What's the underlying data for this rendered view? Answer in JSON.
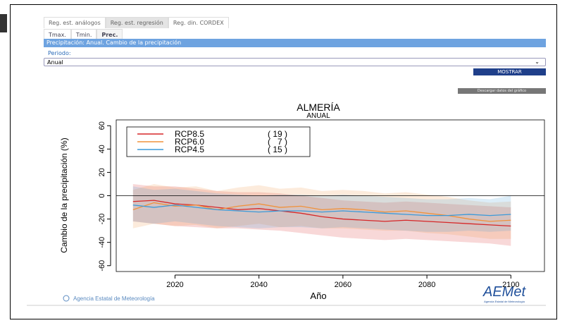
{
  "tabs": [
    "Reg. est. análogos",
    "Reg. est. regresión",
    "Reg. din. CORDEX"
  ],
  "subtabs": [
    "Tmax.",
    "Tmin.",
    "Prec."
  ],
  "header_bar": "Precipitación: Anual. Cambio de la precipitación",
  "period_label": "Periodo:",
  "period_select": "Anual",
  "show_button": "MOSTRAR",
  "download_button": "Descargar datos del gráfico",
  "footer": {
    "agency": "Agencia Estatal de Meteorología",
    "logo": "AEMet",
    "logo_caption": "Agencia Estatal de Meteorología"
  },
  "chart_data": {
    "type": "line",
    "title": "ALMERÍA",
    "subtitle": "ANUAL",
    "xlabel": "Año",
    "ylabel": "Cambio de la precipitación (%)",
    "x": [
      2010,
      2015,
      2020,
      2025,
      2030,
      2035,
      2040,
      2045,
      2050,
      2055,
      2060,
      2065,
      2070,
      2075,
      2080,
      2085,
      2090,
      2095,
      2100
    ],
    "xlim": [
      2006,
      2108
    ],
    "xticks": [
      2020,
      2040,
      2060,
      2080,
      2100
    ],
    "ylim": [
      -65,
      65
    ],
    "yticks": [
      -60,
      -40,
      -20,
      0,
      20,
      40,
      60
    ],
    "legend": "top-left",
    "series": [
      {
        "name": "RCP8.5",
        "legend_count": "( 19 )",
        "color": "#d62728",
        "values": [
          -5,
          -4,
          -7,
          -8,
          -10,
          -12,
          -11,
          -13,
          -15,
          -18,
          -20,
          -21,
          -22,
          -21,
          -22,
          -23,
          -24,
          -25,
          -26
        ],
        "lower": [
          -22,
          -24,
          -26,
          -27,
          -28,
          -28,
          -29,
          -30,
          -32,
          -34,
          -36,
          -37,
          -38,
          -37,
          -38,
          -39,
          -40,
          -41,
          -43
        ],
        "upper": [
          10,
          8,
          8,
          6,
          4,
          3,
          3,
          2,
          0,
          -2,
          -4,
          -5,
          -6,
          -5,
          -6,
          -7,
          -8,
          -9,
          -10
        ]
      },
      {
        "name": "RCP6.0",
        "legend_count": "(   7 )",
        "color": "#f0923c",
        "values": [
          -12,
          -6,
          -9,
          -8,
          -12,
          -9,
          -7,
          -10,
          -9,
          -12,
          -11,
          -12,
          -14,
          -13,
          -15,
          -17,
          -20,
          -22,
          -21
        ],
        "lower": [
          -28,
          -24,
          -26,
          -25,
          -28,
          -26,
          -24,
          -27,
          -26,
          -28,
          -28,
          -29,
          -30,
          -30,
          -32,
          -33,
          -35,
          -37,
          -37
        ],
        "upper": [
          5,
          10,
          7,
          8,
          4,
          7,
          9,
          6,
          7,
          4,
          5,
          4,
          2,
          3,
          1,
          -1,
          -4,
          -6,
          -5
        ]
      },
      {
        "name": "RCP4.5",
        "legend_count": "( 15 )",
        "color": "#3b9ad9",
        "values": [
          -8,
          -10,
          -8,
          -10,
          -12,
          -13,
          -14,
          -13,
          -13,
          -14,
          -13,
          -14,
          -15,
          -16,
          -17,
          -17,
          -16,
          -17,
          -16
        ],
        "lower": [
          -22,
          -24,
          -22,
          -24,
          -26,
          -27,
          -28,
          -27,
          -27,
          -28,
          -27,
          -28,
          -29,
          -30,
          -31,
          -31,
          -30,
          -31,
          -30
        ],
        "upper": [
          8,
          5,
          6,
          4,
          2,
          1,
          0,
          1,
          1,
          0,
          1,
          0,
          -1,
          -2,
          -3,
          -3,
          -2,
          -3,
          0
        ]
      }
    ]
  }
}
